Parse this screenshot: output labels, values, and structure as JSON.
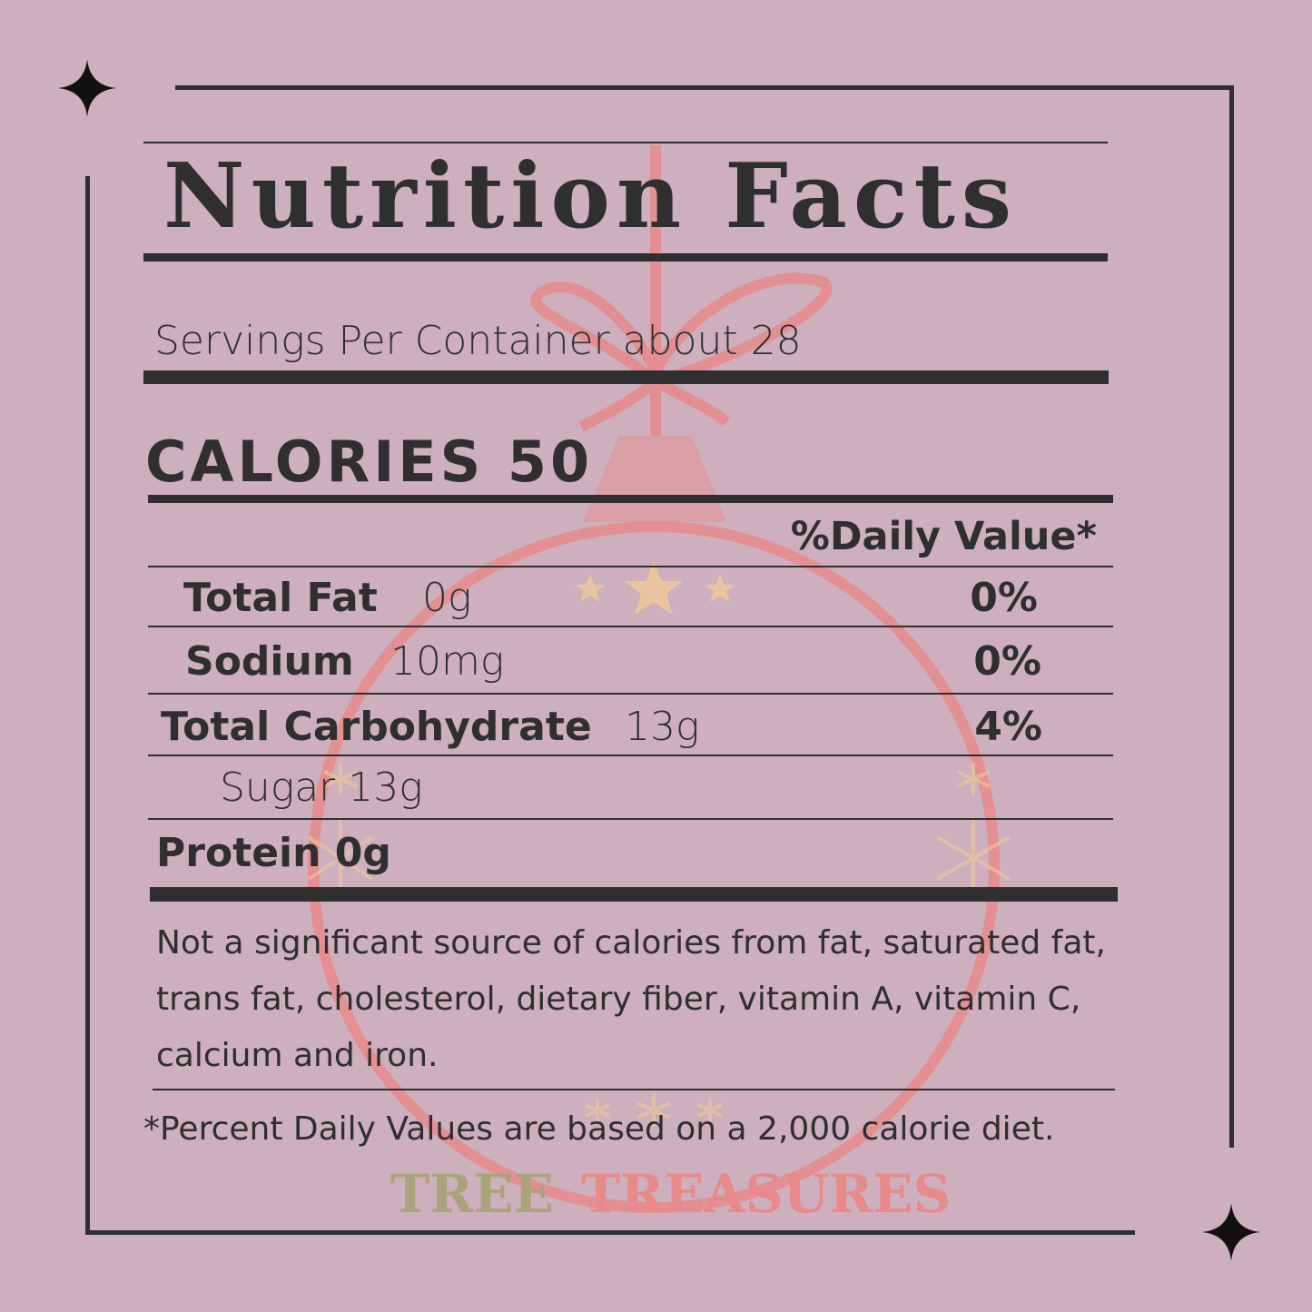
{
  "colors": {
    "background": "#cdafbd",
    "ink": "#2f2f2f",
    "ornament_pink": "#e8898a",
    "watermark_olive": "#a9a47a",
    "star_gold": "#f0c89a"
  },
  "watermark": {
    "line1": "TREE",
    "line2": "TREASURES"
  },
  "label": {
    "title": "Nutrition Facts",
    "servings": "Servings Per Container about 28",
    "calories": "CALORIES 50",
    "daily_value_header": "%Daily Value*",
    "rows": [
      {
        "name": "Total Fat",
        "amount": "0g",
        "dv": "0%"
      },
      {
        "name": "Sodium",
        "amount": "10mg",
        "dv": "0%"
      },
      {
        "name": "Total Carbohydrate",
        "amount": "13g",
        "dv": "4%"
      },
      {
        "name": "Sugar 13g"
      },
      {
        "name": "Protein 0g"
      }
    ],
    "note_lines": [
      "Not a significant source of calories from fat, saturated fat,",
      "trans fat, cholesterol, dietary fiber, vitamin A, vitamin C,",
      "calcium and iron."
    ],
    "footnote": "*Percent Daily Values are based on a 2,000 calorie diet."
  },
  "icons": [
    "sparkle-star-icon",
    "ornament-icon",
    "snowflake-icon",
    "star-icon"
  ]
}
